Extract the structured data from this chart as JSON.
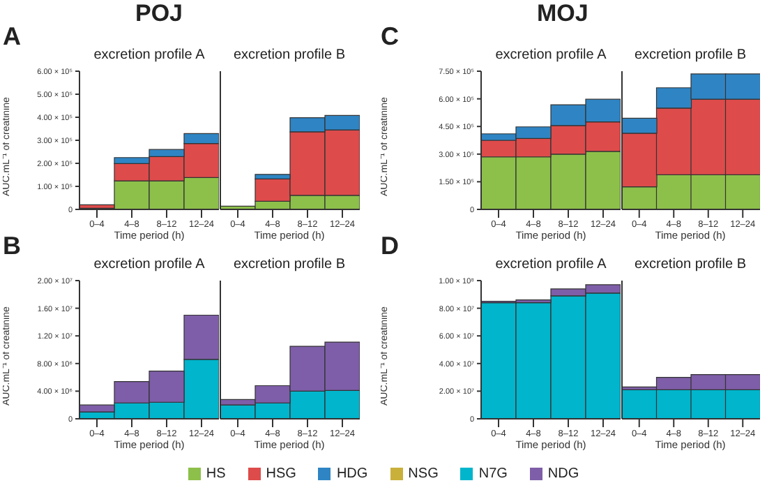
{
  "chart_data": [
    {
      "type": "bar",
      "title": "excretion profile A",
      "annotations": [
        "POJ",
        "A"
      ],
      "xlabel": "Time period (h)",
      "ylabel": "AUC.mL⁻¹ of creatinine",
      "stacked": true,
      "legend": "bottom",
      "categories": [
        "0–4",
        "4–8",
        "8–12",
        "12–24"
      ],
      "ylim": [
        0,
        600000
      ],
      "yticks": [
        {
          "value": 0,
          "label": "0"
        },
        {
          "value": 100000,
          "label": "1.00 × 10⁵"
        },
        {
          "value": 200000,
          "label": "2.00 × 10⁵"
        },
        {
          "value": 300000,
          "label": "3.00 × 10⁵"
        },
        {
          "value": 400000,
          "label": "4.00 × 10⁵"
        },
        {
          "value": 500000,
          "label": "5.00 × 10⁵"
        },
        {
          "value": 600000,
          "label": "6.00 × 10⁵"
        }
      ],
      "series": [
        {
          "name": "HS",
          "color": "#8dc04a",
          "values": [
            5000,
            124000,
            124000,
            138000
          ]
        },
        {
          "name": "HSG",
          "color": "#de4b4b",
          "values": [
            15000,
            75000,
            105000,
            148000
          ]
        },
        {
          "name": "HDG",
          "color": "#2f85c4",
          "values": [
            null,
            26000,
            31000,
            43000
          ]
        }
      ]
    },
    {
      "type": "bar",
      "title": "excretion profile B",
      "xlabel": "Time period (h)",
      "stacked": true,
      "tick_labels": "x",
      "categories": [
        "0–4",
        "4–8",
        "8–12",
        "12–24"
      ],
      "ylim": [
        0,
        600000
      ],
      "series": [
        {
          "color": "#8dc04a",
          "values": [
            14000,
            35000,
            61000,
            61000
          ]
        },
        {
          "color": "#de4b4b",
          "values": [
            null,
            97000,
            276000,
            284000
          ]
        },
        {
          "color": "#2f85c4",
          "values": [
            null,
            20000,
            61000,
            63000
          ]
        }
      ]
    },
    {
      "type": "bar",
      "title": "excretion profile A",
      "annotations": [
        "MOJ",
        "C"
      ],
      "xlabel": "Time period (h)",
      "ylabel": "AUC.mL⁻¹ of creatinine",
      "stacked": true,
      "categories": [
        "0–4",
        "4–8",
        "8–12",
        "12–24"
      ],
      "ylim": [
        0,
        750000
      ],
      "yticks": [
        {
          "value": 0,
          "label": "0"
        },
        {
          "value": 150000,
          "label": "1.50 × 10⁵"
        },
        {
          "value": 300000,
          "label": "3.00 × 10⁵"
        },
        {
          "value": 450000,
          "label": "4.50 × 10⁵"
        },
        {
          "value": 600000,
          "label": "6.00 × 10⁵"
        },
        {
          "value": 750000,
          "label": "7.50 × 10⁵"
        }
      ],
      "series": [
        {
          "color": "#8dc04a",
          "values": [
            285000,
            285000,
            300000,
            315000
          ]
        },
        {
          "color": "#de4b4b",
          "values": [
            90000,
            100000,
            155000,
            160000
          ]
        },
        {
          "color": "#2f85c4",
          "values": [
            35000,
            63000,
            113000,
            123000
          ]
        }
      ]
    },
    {
      "type": "bar",
      "title": "excretion profile B",
      "xlabel": "Time period (h)",
      "stacked": true,
      "tick_labels": "x",
      "categories": [
        "0–4",
        "4–8",
        "8–12",
        "12–24"
      ],
      "ylim": [
        0,
        750000
      ],
      "series": [
        {
          "color": "#8dc04a",
          "values": [
            123000,
            188000,
            188000,
            188000
          ]
        },
        {
          "color": "#de4b4b",
          "values": [
            290000,
            362000,
            410000,
            410000
          ]
        },
        {
          "color": "#2f85c4",
          "values": [
            82000,
            110000,
            137000,
            137000
          ]
        }
      ]
    },
    {
      "type": "bar",
      "title": "excretion profile A",
      "annotations": [
        "B"
      ],
      "xlabel": "Time period (h)",
      "ylabel": "AUC.mL⁻¹ of creatinine",
      "stacked": true,
      "legend": "bottom",
      "categories": [
        "0–4",
        "4–8",
        "8–12",
        "12–24"
      ],
      "ylim": [
        0,
        20000000
      ],
      "yticks": [
        {
          "value": 0,
          "label": "0"
        },
        {
          "value": 4000000,
          "label": "4.00 × 10⁶"
        },
        {
          "value": 8000000,
          "label": "8.00 × 10⁶"
        },
        {
          "value": 12000000,
          "label": "1.20 × 10⁷"
        },
        {
          "value": 16000000,
          "label": "1.60 × 10⁷"
        },
        {
          "value": 20000000,
          "label": "2.00 × 10⁷"
        }
      ],
      "series": [
        {
          "name": "NSG",
          "color": "#c9b03a",
          "values": [
            null,
            null,
            null,
            null
          ]
        },
        {
          "name": "N7G",
          "color": "#00b5cc",
          "values": [
            1000000,
            2300000,
            2400000,
            8600000
          ]
        },
        {
          "name": "NDG",
          "color": "#7e5ea8",
          "values": [
            1000000,
            3100000,
            4500000,
            6400000
          ]
        }
      ]
    },
    {
      "type": "bar",
      "title": "excretion profile B",
      "xlabel": "Time period (h)",
      "stacked": true,
      "tick_labels": "x",
      "categories": [
        "0–4",
        "4–8",
        "8–12",
        "12–24"
      ],
      "ylim": [
        0,
        20000000
      ],
      "series": [
        {
          "color": "#00b5cc",
          "values": [
            2000000,
            2300000,
            4000000,
            4100000
          ]
        },
        {
          "color": "#7e5ea8",
          "values": [
            800000,
            2500000,
            6500000,
            7000000
          ]
        }
      ]
    },
    {
      "type": "bar",
      "title": "excretion profile A",
      "annotations": [
        "D"
      ],
      "xlabel": "Time period (h)",
      "ylabel": "AUC.mL⁻¹ of creatinine",
      "stacked": true,
      "categories": [
        "0–4",
        "4–8",
        "8–12",
        "12–24"
      ],
      "ylim": [
        0,
        100000000
      ],
      "yticks": [
        {
          "value": 0,
          "label": "0"
        },
        {
          "value": 20000000,
          "label": "2.00 × 10⁷"
        },
        {
          "value": 40000000,
          "label": "4.00 × 10⁷"
        },
        {
          "value": 60000000,
          "label": "6.00 × 10⁷"
        },
        {
          "value": 80000000,
          "label": "8.00 × 10⁷"
        },
        {
          "value": 100000000,
          "label": "1.00 × 10⁸"
        }
      ],
      "series": [
        {
          "color": "#00b5cc",
          "values": [
            84000000,
            84000000,
            89000000,
            91000000
          ]
        },
        {
          "color": "#7e5ea8",
          "values": [
            1000000,
            2000000,
            5000000,
            6000000
          ]
        }
      ]
    },
    {
      "type": "bar",
      "title": "excretion profile B",
      "xlabel": "Time period (h)",
      "stacked": true,
      "tick_labels": "x",
      "categories": [
        "0–4",
        "4–8",
        "8–12",
        "12–24"
      ],
      "ylim": [
        0,
        100000000
      ],
      "series": [
        {
          "color": "#00b5cc",
          "values": [
            21000000,
            21000000,
            21000000,
            21000000
          ]
        },
        {
          "color": "#7e5ea8",
          "values": [
            2000000,
            9000000,
            11000000,
            11000000
          ]
        }
      ]
    }
  ]
}
